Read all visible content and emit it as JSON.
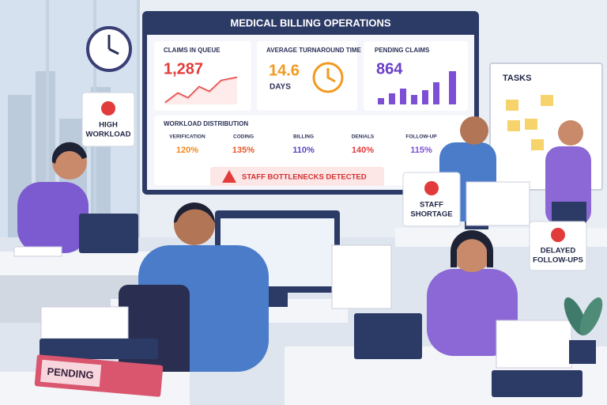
{
  "dashboard": {
    "title": "MEDICAL BILLING OPERATIONS",
    "kpis": [
      {
        "label": "CLAIMS IN QUEUE",
        "value": "1,287"
      },
      {
        "label": "AVERAGE TURNAROUND TIME",
        "value": "14.6",
        "unit": "DAYS"
      },
      {
        "label": "PENDING CLAIMS",
        "value": "864"
      }
    ],
    "workload": {
      "title": "WORKLOAD DISTRIBUTION",
      "items": [
        {
          "name": "VERIFICATION",
          "value": "120%"
        },
        {
          "name": "CODING",
          "value": "135%"
        },
        {
          "name": "BILLING",
          "value": "110%"
        },
        {
          "name": "DENIALS",
          "value": "140%"
        },
        {
          "name": "FOLLOW-UP",
          "value": "115%"
        }
      ]
    },
    "alert": "STAFF BOTTLENECKS DETECTED"
  },
  "signs": [
    {
      "lines": [
        "HIGH",
        "WORKLOAD"
      ]
    },
    {
      "lines": [
        "STAFF",
        "SHORTAGE"
      ]
    },
    {
      "lines": [
        "DELAYED",
        "FOLLOW-UPS"
      ]
    }
  ],
  "tasks_board": {
    "title": "TASKS"
  },
  "binder_label": "PENDING"
}
